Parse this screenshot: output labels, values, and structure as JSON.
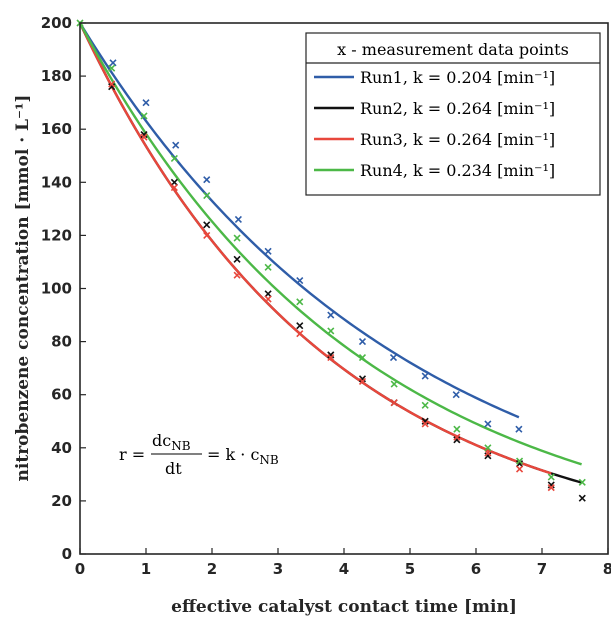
{
  "chart_data": {
    "type": "line",
    "xlabel": "effective catalyst contact time   [min]",
    "ylabel": "nitrobenzene concentration   [mmol · L⁻¹]",
    "xlim": [
      0,
      8
    ],
    "ylim": [
      0,
      200
    ],
    "xticks": [
      "0",
      "1",
      "2",
      "3",
      "4",
      "5",
      "6",
      "7",
      "8"
    ],
    "yticks": [
      "0",
      "20",
      "40",
      "60",
      "80",
      "100",
      "120",
      "140",
      "160",
      "180",
      "200"
    ],
    "grid": false,
    "legend_position": "top-right",
    "legend_title": "x - measurement data points",
    "annotation": {
      "lhs": "r =",
      "num": "dc",
      "num_sub": "NB",
      "den": "dt",
      "rhs": "= k · c",
      "rhs_sub": "NB"
    },
    "series": [
      {
        "name": "Run1,    k = 0.204 [min⁻¹]",
        "color": "#2f5da8",
        "fit": {
          "c0": 200,
          "k": 0.204,
          "tmax": 6.65
        },
        "points": [
          [
            0.5,
            185
          ],
          [
            1.0,
            170
          ],
          [
            1.45,
            154
          ],
          [
            1.92,
            141
          ],
          [
            2.4,
            126
          ],
          [
            2.85,
            114
          ],
          [
            3.33,
            103
          ],
          [
            3.8,
            90
          ],
          [
            4.28,
            80
          ],
          [
            4.75,
            74
          ],
          [
            5.23,
            67
          ],
          [
            5.7,
            60
          ],
          [
            6.18,
            49
          ],
          [
            6.65,
            47
          ]
        ]
      },
      {
        "name": "Run2,    k = 0.264 [min⁻¹]",
        "color": "#111111",
        "fit": {
          "c0": 200,
          "k": 0.264,
          "tmax": 7.6
        },
        "points": [
          [
            0.48,
            176
          ],
          [
            0.97,
            158
          ],
          [
            1.43,
            140
          ],
          [
            1.92,
            124
          ],
          [
            2.38,
            111
          ],
          [
            2.85,
            98
          ],
          [
            3.33,
            86
          ],
          [
            3.8,
            75
          ],
          [
            4.28,
            66
          ],
          [
            4.76,
            57
          ],
          [
            5.23,
            50
          ],
          [
            5.71,
            43
          ],
          [
            6.18,
            37
          ],
          [
            6.66,
            34
          ],
          [
            7.14,
            26
          ],
          [
            7.61,
            21
          ]
        ]
      },
      {
        "name": "Run3,    k = 0.264 [min⁻¹]",
        "color": "#e8473c",
        "fit": {
          "c0": 200,
          "k": 0.264,
          "tmax": 7.14
        },
        "points": [
          [
            0.48,
            177
          ],
          [
            0.97,
            157
          ],
          [
            1.43,
            138
          ],
          [
            1.92,
            120
          ],
          [
            2.38,
            105
          ],
          [
            2.85,
            96
          ],
          [
            3.33,
            83
          ],
          [
            3.8,
            74
          ],
          [
            4.28,
            65
          ],
          [
            4.76,
            57
          ],
          [
            5.23,
            49
          ],
          [
            5.71,
            44
          ],
          [
            6.18,
            38
          ],
          [
            6.66,
            32
          ],
          [
            7.14,
            25
          ]
        ]
      },
      {
        "name": "Run4,    k = 0.234 [min⁻¹]",
        "color": "#4cb847",
        "fit": {
          "c0": 200,
          "k": 0.234,
          "tmax": 7.6
        },
        "points": [
          [
            0.0,
            200
          ],
          [
            0.48,
            183
          ],
          [
            0.97,
            165
          ],
          [
            1.43,
            149
          ],
          [
            1.92,
            135
          ],
          [
            2.38,
            119
          ],
          [
            2.85,
            108
          ],
          [
            3.33,
            95
          ],
          [
            3.8,
            84
          ],
          [
            4.28,
            74
          ],
          [
            4.76,
            64
          ],
          [
            5.23,
            56
          ],
          [
            5.71,
            47
          ],
          [
            6.18,
            40
          ],
          [
            6.66,
            35
          ],
          [
            7.14,
            29
          ],
          [
            7.61,
            27
          ]
        ]
      }
    ]
  }
}
